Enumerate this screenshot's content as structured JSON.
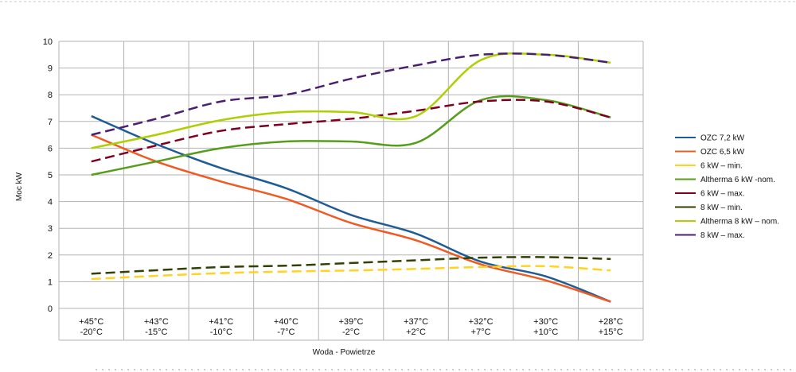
{
  "chart_data": {
    "type": "line",
    "title": "",
    "xlabel": "Woda - Powietrze",
    "ylabel": "Moc kW",
    "ylim": [
      0,
      10
    ],
    "yticks": [
      0,
      1,
      2,
      3,
      4,
      5,
      6,
      7,
      8,
      9,
      10
    ],
    "grid": true,
    "legend_position": "right",
    "categories": [
      [
        "+45°C",
        "-20°C"
      ],
      [
        "+43°C",
        "-15°C"
      ],
      [
        "+41°C",
        "-10°C"
      ],
      [
        "+40°C",
        "-7°C"
      ],
      [
        "+39°C",
        "-2°C"
      ],
      [
        "+37°C",
        "+2°C"
      ],
      [
        "+32°C",
        "+7°C"
      ],
      [
        "+30°C",
        "+10°C"
      ],
      [
        "+28°C",
        "+15°C"
      ]
    ],
    "series": [
      {
        "name": "OZC 7,2 kW",
        "color": "#1f5b94",
        "dashed": false,
        "values": [
          7.2,
          6.15,
          5.25,
          4.5,
          3.5,
          2.8,
          1.75,
          1.2,
          0.25
        ]
      },
      {
        "name": "OZC 6,5 kW",
        "color": "#f05a22",
        "dashed": false,
        "values": [
          6.5,
          5.5,
          4.75,
          4.1,
          3.2,
          2.55,
          1.65,
          1.05,
          0.25
        ]
      },
      {
        "name": "6 kW – min.",
        "color": "#ffd320",
        "dashed": true,
        "values": [
          1.1,
          1.22,
          1.32,
          1.38,
          1.42,
          1.48,
          1.55,
          1.58,
          1.42
        ]
      },
      {
        "name": "Altherma 6 kW -nom.",
        "color": "#579d1c",
        "dashed": false,
        "values": [
          5.0,
          5.5,
          6.0,
          6.25,
          6.25,
          6.2,
          7.8,
          7.8,
          7.15
        ]
      },
      {
        "name": "6 kW – max.",
        "color": "#7e0021",
        "dashed": true,
        "values": [
          5.5,
          6.1,
          6.65,
          6.9,
          7.1,
          7.4,
          7.75,
          7.75,
          7.15
        ]
      },
      {
        "name": "8 kW – min.",
        "color": "#314004",
        "dashed": true,
        "values": [
          1.3,
          1.43,
          1.55,
          1.6,
          1.7,
          1.8,
          1.9,
          1.92,
          1.85
        ]
      },
      {
        "name": "Altherma 8 kW – nom.",
        "color": "#aecf00",
        "dashed": false,
        "values": [
          6.0,
          6.5,
          7.05,
          7.35,
          7.35,
          7.2,
          9.3,
          9.5,
          9.2
        ]
      },
      {
        "name": "8 kW – max.",
        "color": "#4b1f6f",
        "dashed": true,
        "values": [
          6.5,
          7.1,
          7.75,
          8.0,
          8.6,
          9.1,
          9.5,
          9.5,
          9.2
        ]
      }
    ]
  }
}
